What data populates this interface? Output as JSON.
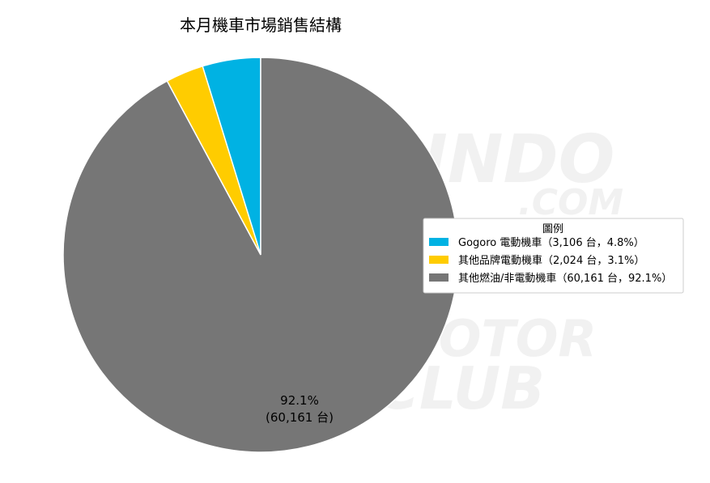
{
  "colors": {
    "gogoro": "#00b2e3",
    "other_brand": "#ffcc00",
    "fuel": "#767676",
    "slice_stroke": "#ffffff",
    "legend_border": "#cccccc"
  },
  "chart_data": {
    "type": "pie",
    "title": "本月機車市場銷售結構",
    "legend": {
      "title": "圖例",
      "placement": "right"
    },
    "slices": [
      {
        "name": "Gogoro 電動機車",
        "value": 3106,
        "percent": 4.8,
        "legend_label": "Gogoro 電動機車（3,106 台，4.8%）",
        "color": "#00b2e3"
      },
      {
        "name": "其他品牌電動機車",
        "value": 2024,
        "percent": 3.1,
        "legend_label": "其他品牌電動機車（2,024 台，3.1%）",
        "color": "#ffcc00"
      },
      {
        "name": "其他燃油/非電動機車",
        "value": 60161,
        "percent": 92.1,
        "legend_label": "其他燃油/非電動機車（60,161 台，92.1%）",
        "color": "#767676",
        "data_label_line1": "92.1%",
        "data_label_line2": "(60,161 台)"
      }
    ],
    "start_angle": "12 o'clock",
    "direction": "counterclockwise"
  },
  "watermark": {
    "line1": "JORSINDO",
    "line2": ".COM",
    "line3": "MOTOR",
    "line4": "CLUB"
  }
}
